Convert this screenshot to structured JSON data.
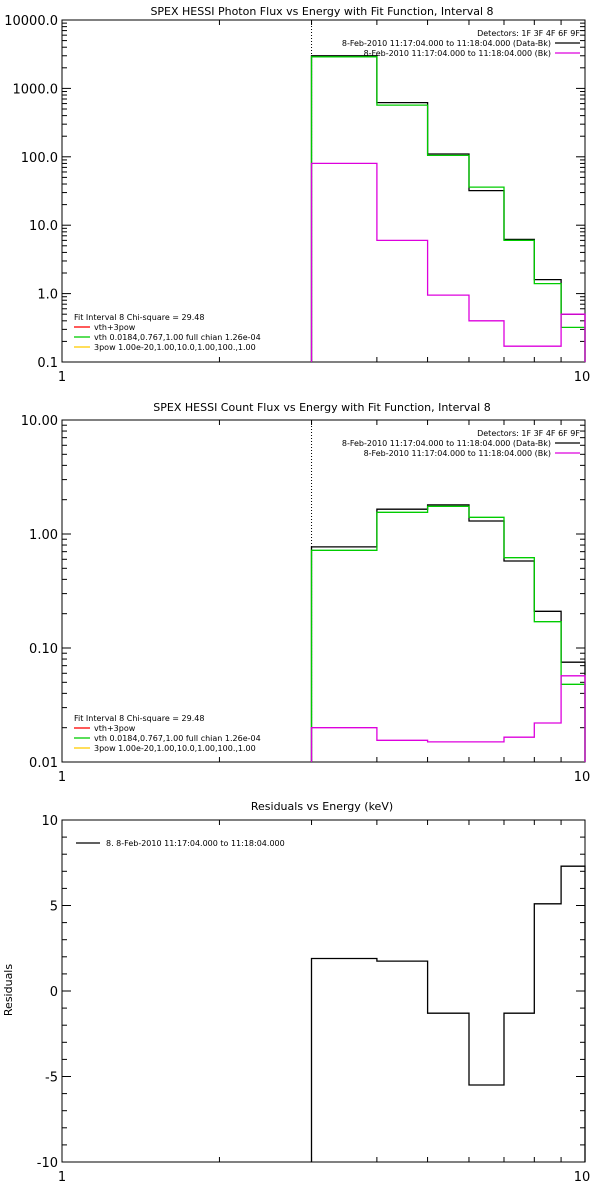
{
  "chart_data": [
    {
      "type": "line",
      "title": "SPEX HESSI Photon Flux vs Energy with Fit Function, Interval 8",
      "xscale": "log",
      "yscale": "log",
      "xlim": [
        1,
        10
      ],
      "ylim": [
        0.1,
        10000
      ],
      "x_tick_labels": [
        "1",
        "10"
      ],
      "y_tick_labels": [
        "0.1",
        "1.0",
        "10.0",
        "100.0",
        "1000.0",
        "10000.0"
      ],
      "y_tick_values": [
        0.1,
        1,
        10,
        100,
        1000,
        10000
      ],
      "energy_marker": 3,
      "bin_edges": [
        3,
        4,
        5,
        6,
        7,
        8,
        9,
        10
      ],
      "series": [
        {
          "role": "data",
          "color": "#000000",
          "values": [
            3000,
            620,
            110,
            32,
            6.2,
            1.6,
            0.5,
            0.38
          ]
        },
        {
          "role": "model",
          "color": "#00cc00",
          "values": [
            2900,
            570,
            105,
            36,
            6.0,
            1.4,
            0.32,
            0.3
          ]
        },
        {
          "role": "background",
          "color": "#dd00dd",
          "values": [
            80,
            6,
            0.95,
            0.4,
            0.17,
            0.17,
            0.5,
            0.5
          ]
        }
      ],
      "legend_right": {
        "position": "top-right",
        "header": "Detectors: 1F 3F 4F 6F 9F",
        "entries": [
          {
            "label": "8-Feb-2010 11:17:04.000 to 11:18:04.000 (Data-Bk)",
            "color": "#000000"
          },
          {
            "label": "8-Feb-2010 11:17:04.000 to 11:18:04.000 (Bk)",
            "color": "#dd00dd"
          }
        ]
      },
      "legend_left": {
        "position": "bottom-left",
        "header": "Fit Interval 8   Chi-square = 29.48",
        "entries": [
          {
            "label": "vth+3pow",
            "color": "#ff0000"
          },
          {
            "label": "vth 0.0184,0.767,1.00  full chian 1.26e-04",
            "color": "#00cc00"
          },
          {
            "label": "3pow 1.00e-20,1.00,10.0,1.00,100.,1.00",
            "color": "#ffcc00"
          }
        ]
      }
    },
    {
      "type": "line",
      "title": "SPEX HESSI Count Flux vs Energy with Fit Function, Interval 8",
      "xscale": "log",
      "yscale": "log",
      "xlim": [
        1,
        10
      ],
      "ylim": [
        0.01,
        10
      ],
      "x_tick_labels": [
        "1",
        "10"
      ],
      "y_tick_labels": [
        "0.01",
        "0.10",
        "1.00",
        "10.00"
      ],
      "y_tick_values": [
        0.01,
        0.1,
        1,
        10
      ],
      "energy_marker": 3,
      "bin_edges": [
        3,
        4,
        5,
        6,
        7,
        8,
        9,
        10
      ],
      "series": [
        {
          "role": "data",
          "color": "#000000",
          "values": [
            0.77,
            1.65,
            1.8,
            1.3,
            0.58,
            0.21,
            0.075,
            0.055
          ]
        },
        {
          "role": "model",
          "color": "#00cc00",
          "values": [
            0.72,
            1.55,
            1.75,
            1.4,
            0.62,
            0.17,
            0.048,
            0.045
          ]
        },
        {
          "role": "background",
          "color": "#dd00dd",
          "values": [
            0.02,
            0.0155,
            0.015,
            0.015,
            0.0165,
            0.022,
            0.057,
            0.055
          ]
        }
      ],
      "legend_right": {
        "position": "top-right",
        "header": "Detectors: 1F 3F 4F 6F 9F",
        "entries": [
          {
            "label": "8-Feb-2010 11:17:04.000 to 11:18:04.000 (Data-Bk)",
            "color": "#000000"
          },
          {
            "label": "8-Feb-2010 11:17:04.000 to 11:18:04.000 (Bk)",
            "color": "#dd00dd"
          }
        ]
      },
      "legend_left": {
        "position": "bottom-left",
        "header": "Fit Interval 8   Chi-square = 29.48",
        "entries": [
          {
            "label": "vth+3pow",
            "color": "#ff0000"
          },
          {
            "label": "vth 0.0184,0.767,1.00  full chian 1.26e-04",
            "color": "#00cc00"
          },
          {
            "label": "3pow 1.00e-20,1.00,10.0,1.00,100.,1.00",
            "color": "#ffcc00"
          }
        ]
      }
    },
    {
      "type": "line",
      "title": "Residuals vs Energy (keV)",
      "ylabel": "Residuals",
      "xscale": "log",
      "yscale": "linear",
      "xlim": [
        1,
        10
      ],
      "ylim": [
        -10,
        10
      ],
      "x_tick_labels": [
        "1",
        "10"
      ],
      "y_tick_labels": [
        "-10",
        "-5",
        "0",
        "5",
        "10"
      ],
      "y_tick_values": [
        -10,
        -5,
        0,
        5,
        10
      ],
      "bin_edges": [
        3,
        4,
        5,
        6,
        7,
        8,
        9,
        10
      ],
      "series": [
        {
          "role": "residuals",
          "color": "#000000",
          "values": [
            1.9,
            1.75,
            -1.3,
            -5.5,
            -1.3,
            5.1,
            7.3
          ]
        }
      ],
      "legend": {
        "position": "top-left",
        "entries": [
          {
            "label": "8.  8-Feb-2010 11:17:04.000 to 11:18:04.000",
            "color": "#000000"
          }
        ]
      }
    }
  ]
}
